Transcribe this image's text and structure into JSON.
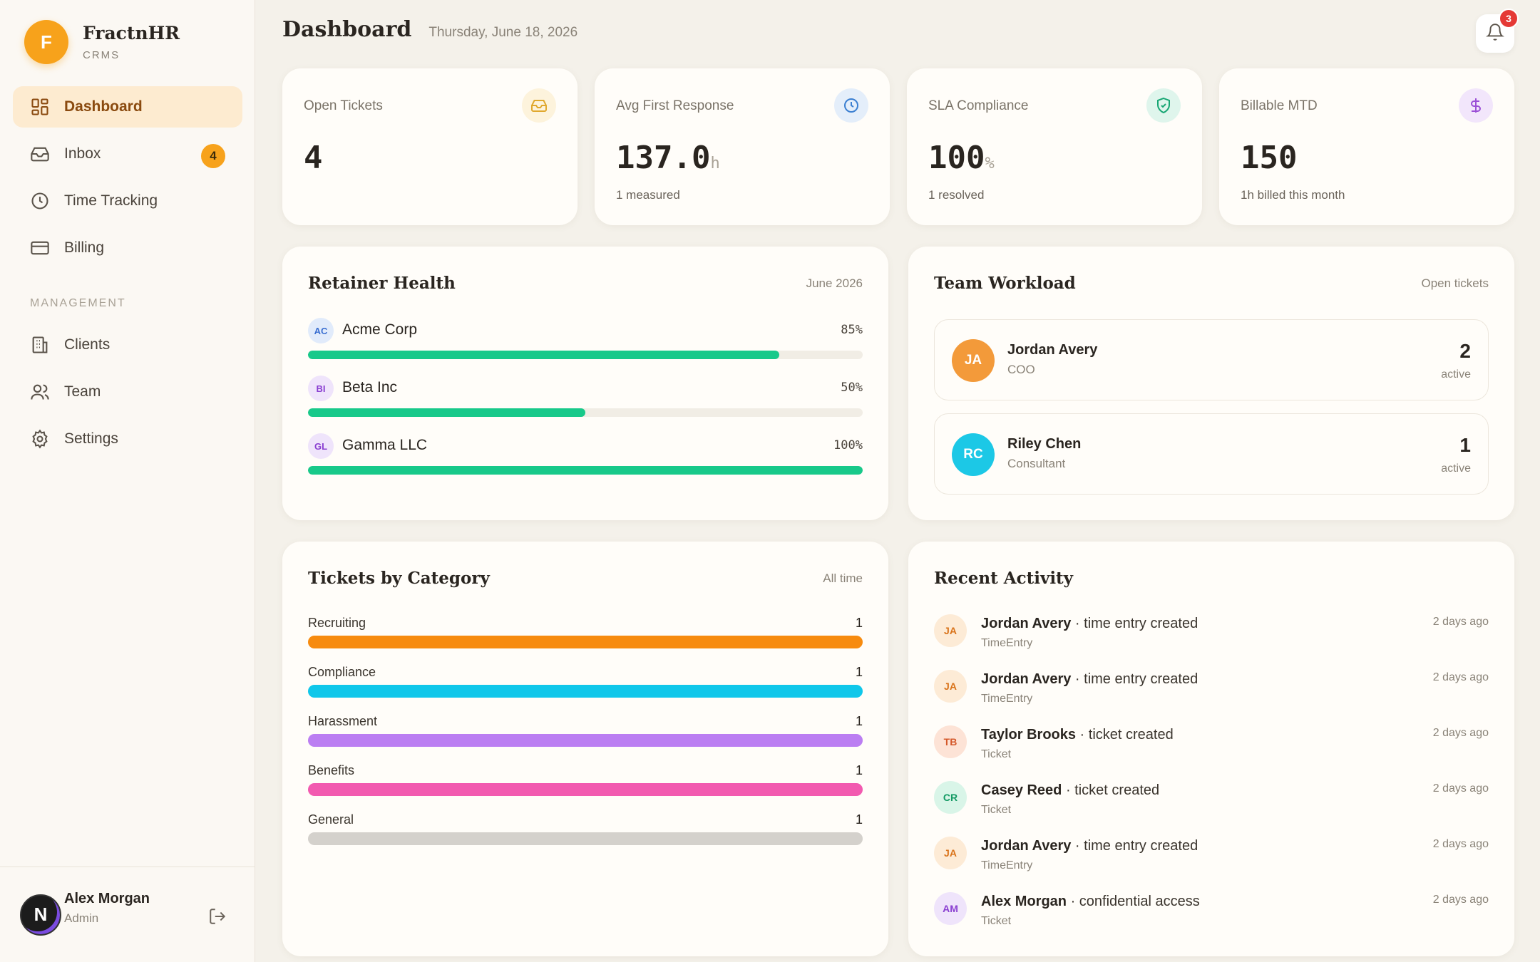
{
  "brand": {
    "initial": "F",
    "name": "FractnHR",
    "sub": "CRMS"
  },
  "nav": {
    "items": [
      {
        "label": "Dashboard",
        "icon": "dashboard-icon",
        "active": true
      },
      {
        "label": "Inbox",
        "icon": "inbox-icon",
        "badge": "4"
      },
      {
        "label": "Time Tracking",
        "icon": "clock-icon"
      },
      {
        "label": "Billing",
        "icon": "card-icon"
      }
    ],
    "section_label": "MANAGEMENT",
    "management": [
      {
        "label": "Clients",
        "icon": "building-icon"
      },
      {
        "label": "Team",
        "icon": "users-icon"
      },
      {
        "label": "Settings",
        "icon": "gear-icon"
      }
    ]
  },
  "user": {
    "initial": "N",
    "name": "Alex Morgan",
    "role": "Admin"
  },
  "header": {
    "title": "Dashboard",
    "date": "Thursday, June 18, 2026",
    "notifications": "3"
  },
  "stats": [
    {
      "label": "Open Tickets",
      "value": "4",
      "unit": "",
      "sub": "",
      "icon": "inbox-icon",
      "color": "#e0a82e",
      "bg": "#fdf3dc"
    },
    {
      "label": "Avg First Response",
      "value": "137.0",
      "unit": "h",
      "sub": "1 measured",
      "icon": "clock-icon",
      "color": "#3b7fd1",
      "bg": "#e4eefa"
    },
    {
      "label": "SLA Compliance",
      "value": "100",
      "unit": "%",
      "sub": "1 resolved",
      "icon": "shield-icon",
      "color": "#17a673",
      "bg": "#dff5ec"
    },
    {
      "label": "Billable MTD",
      "value": "150",
      "unit": "",
      "sub": "1h billed this month",
      "icon": "dollar-icon",
      "color": "#9b4fd6",
      "bg": "#f2e6fb"
    }
  ],
  "retainer": {
    "title": "Retainer Health",
    "meta": "June 2026",
    "rows": [
      {
        "initials": "AC",
        "name": "Acme Corp",
        "pct_label": "85%",
        "pct": 85,
        "fg": "#3b6fd1",
        "bg": "#e1ebfb"
      },
      {
        "initials": "BI",
        "name": "Beta Inc",
        "pct_label": "50%",
        "pct": 50,
        "fg": "#8a3fd1",
        "bg": "#efe4fb"
      },
      {
        "initials": "GL",
        "name": "Gamma LLC",
        "pct_label": "100%",
        "pct": 100,
        "fg": "#8a3fd1",
        "bg": "#efe4fb"
      }
    ]
  },
  "workload": {
    "title": "Team Workload",
    "meta": "Open tickets",
    "rows": [
      {
        "initials": "JA",
        "name": "Jordan Avery",
        "role": "COO",
        "count": "2",
        "status": "active",
        "color": "#f39a3a"
      },
      {
        "initials": "RC",
        "name": "Riley Chen",
        "role": "Consultant",
        "count": "1",
        "status": "active",
        "color": "#1cc8e6"
      }
    ]
  },
  "categories": {
    "title": "Tickets by Category",
    "meta": "All time",
    "rows": [
      {
        "label": "Recruiting",
        "value": "1",
        "color": "#f78b0f"
      },
      {
        "label": "Compliance",
        "value": "1",
        "color": "#10c7ea"
      },
      {
        "label": "Harassment",
        "value": "1",
        "color": "#bb7ef2"
      },
      {
        "label": "Benefits",
        "value": "1",
        "color": "#f25ab0"
      },
      {
        "label": "General",
        "value": "1",
        "color": "#d4d1cc"
      }
    ]
  },
  "activity": {
    "title": "Recent Activity",
    "rows": [
      {
        "initials": "JA",
        "actor": "Jordan Avery",
        "action": " · time entry created",
        "type": "TimeEntry",
        "time": "2 days ago",
        "fg": "#d9731a",
        "bg": "#fdebd6"
      },
      {
        "initials": "JA",
        "actor": "Jordan Avery",
        "action": " · time entry created",
        "type": "TimeEntry",
        "time": "2 days ago",
        "fg": "#d9731a",
        "bg": "#fdebd6"
      },
      {
        "initials": "TB",
        "actor": "Taylor Brooks",
        "action": " · ticket created",
        "type": "Ticket",
        "time": "2 days ago",
        "fg": "#d4582a",
        "bg": "#fde3d6"
      },
      {
        "initials": "CR",
        "actor": "Casey Reed",
        "action": " · ticket created",
        "type": "Ticket",
        "time": "2 days ago",
        "fg": "#139a64",
        "bg": "#d9f5e8"
      },
      {
        "initials": "JA",
        "actor": "Jordan Avery",
        "action": " · time entry created",
        "type": "TimeEntry",
        "time": "2 days ago",
        "fg": "#d9731a",
        "bg": "#fdebd6"
      },
      {
        "initials": "AM",
        "actor": "Alex Morgan",
        "action": " · confidential access",
        "type": "Ticket",
        "time": "2 days ago",
        "fg": "#8a3fd1",
        "bg": "#efe4fb"
      }
    ]
  }
}
